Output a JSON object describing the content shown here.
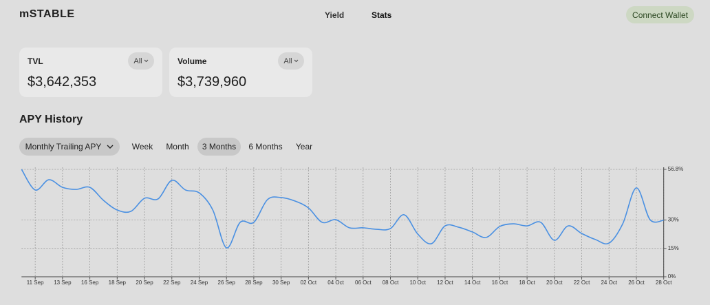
{
  "header": {
    "logo": "mSTABLE",
    "nav": [
      "Yield",
      "Stats"
    ],
    "button": "Connect Wallet"
  },
  "cards": [
    {
      "label": "TVL",
      "filter": "All",
      "value": "$3,642,353"
    },
    {
      "label": "Volume",
      "filter": "All",
      "value": "$3,739,960"
    }
  ],
  "section_title": "APY History",
  "dropdown": "Monthly Trailing APY",
  "tabs": [
    "Week",
    "Month",
    "3 Months",
    "6 Months",
    "Year"
  ],
  "chart_data": {
    "type": "line",
    "categories": [
      null,
      "11 Sep",
      null,
      "13 Sep",
      null,
      "16 Sep",
      null,
      "18 Sep",
      null,
      "20 Sep",
      null,
      "22 Sep",
      null,
      "24 Sep",
      null,
      "26 Sep",
      null,
      "28 Sep",
      null,
      "30 Sep",
      null,
      "02 Oct",
      null,
      "04 Oct",
      null,
      "06 Oct",
      null,
      "08 Oct",
      null,
      "10 Oct",
      null,
      "12 Oct",
      null,
      "14 Oct",
      null,
      "16 Oct",
      null,
      "18 Oct",
      null,
      "20 Oct",
      null,
      "22 Oct",
      null,
      "24 Oct",
      null,
      "26 Oct",
      null,
      "28 Oct"
    ],
    "values": [
      56.8,
      45.9,
      51.3,
      47.3,
      46.2,
      47.3,
      40.4,
      35.3,
      34.6,
      41.5,
      41.2,
      51.0,
      45.9,
      44.4,
      35.3,
      15.3,
      28.8,
      28.8,
      40.8,
      41.9,
      40.1,
      36.4,
      28.8,
      30.2,
      25.9,
      25.9,
      25.1,
      25.5,
      32.8,
      22.6,
      17.5,
      26.9,
      26.2,
      23.7,
      20.8,
      26.6,
      28.0,
      26.9,
      28.8,
      19.3,
      26.9,
      22.9,
      19.7,
      17.8,
      28.0,
      47.0,
      30.2,
      29.9
    ],
    "color": "#4a90e2",
    "ylim": [
      0,
      56.8
    ],
    "yticks": [
      {
        "value": 0,
        "label": "0%"
      },
      {
        "value": 15,
        "label": "15%"
      },
      {
        "value": 30,
        "label": "30%"
      },
      {
        "value": 56.8,
        "label": "56.8%"
      }
    ],
    "grid": true
  }
}
